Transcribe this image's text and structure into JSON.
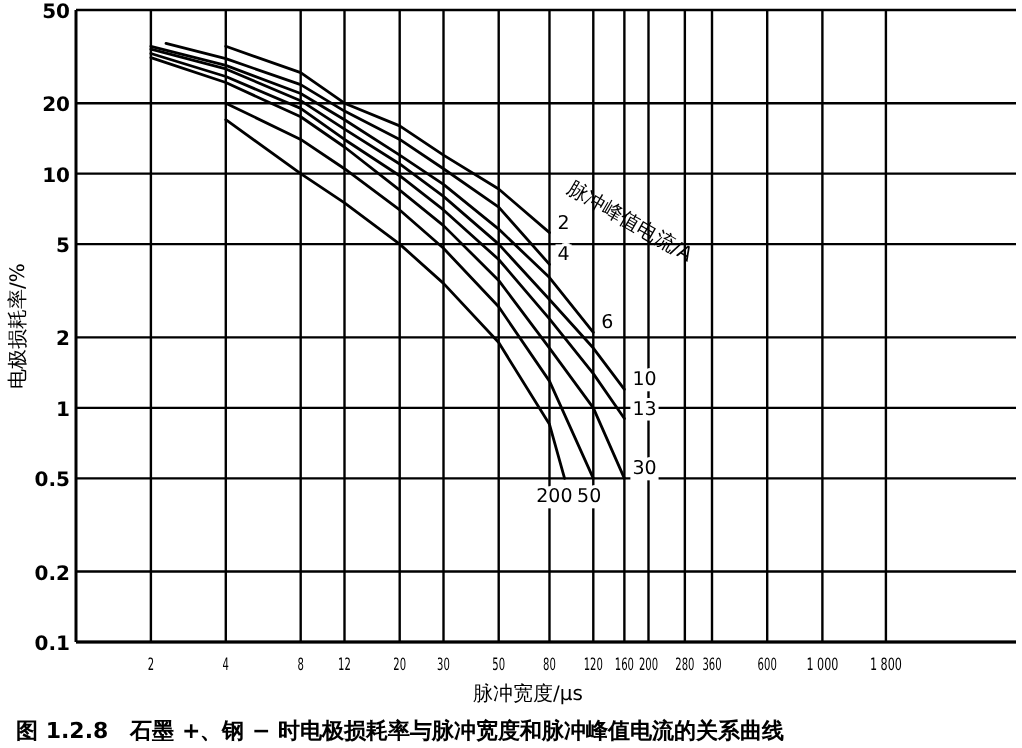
{
  "chart_data": {
    "type": "line",
    "title": "图 1.2.8　石墨 +、钢 − 时电极损耗率与脉冲宽度和脉冲峰值电流的关系曲线",
    "xlabel": "脉冲宽度/μs",
    "ylabel": "电极损耗率/%",
    "legend_title": "脉冲峰值电流/A",
    "log": "xy",
    "grid": true,
    "legend": false,
    "marker": "none",
    "line_style": "solid",
    "xlim": [
      1,
      6000
    ],
    "ylim": [
      0.1,
      50
    ],
    "xticks": [
      2,
      4,
      8,
      12,
      20,
      30,
      50,
      80,
      120,
      160,
      200,
      280,
      360,
      600,
      {
        "value": 1000,
        "label": "1 000"
      },
      {
        "value": 1800,
        "label": "1 800"
      }
    ],
    "yticks": [
      0.1,
      0.2,
      0.5,
      1,
      2,
      5,
      10,
      20,
      50
    ],
    "series": [
      {
        "name": "2",
        "color": "#000000",
        "x": [
          4,
          8,
          12,
          20,
          30,
          50,
          80
        ],
        "values": [
          35,
          27,
          20,
          16,
          12,
          8.6,
          5.6
        ]
      },
      {
        "name": "4",
        "color": "#000000",
        "x": [
          2.3,
          4,
          8,
          12,
          20,
          30,
          50,
          80
        ],
        "values": [
          36,
          31,
          24,
          18.5,
          14,
          10.5,
          7.2,
          4.1
        ]
      },
      {
        "name": "6",
        "color": "#000000",
        "x": [
          2,
          4,
          8,
          12,
          20,
          30,
          50,
          80,
          120
        ],
        "values": [
          35,
          29,
          22,
          17,
          12,
          9,
          5.8,
          3.6,
          2.1
        ]
      },
      {
        "name": "10",
        "color": "#000000",
        "x": [
          2,
          4,
          8,
          12,
          20,
          30,
          50,
          80,
          120,
          160
        ],
        "values": [
          34,
          28,
          20.5,
          15.5,
          11,
          8,
          5,
          2.9,
          1.8,
          1.2
        ]
      },
      {
        "name": "13",
        "color": "#000000",
        "x": [
          2,
          4,
          8,
          12,
          20,
          30,
          50,
          80,
          120,
          160
        ],
        "values": [
          32.6,
          26,
          19,
          14,
          9.8,
          7,
          4.3,
          2.4,
          1.4,
          0.9
        ]
      },
      {
        "name": "30",
        "color": "#000000",
        "x": [
          2,
          4,
          8,
          12,
          20,
          30,
          50,
          80,
          120,
          160
        ],
        "values": [
          31.3,
          24.5,
          17.5,
          13,
          8.5,
          6,
          3.5,
          1.8,
          1.0,
          0.5
        ]
      },
      {
        "name": "50",
        "color": "#000000",
        "x": [
          4,
          8,
          12,
          20,
          30,
          50,
          80,
          120
        ],
        "values": [
          20,
          14,
          10.5,
          7,
          4.8,
          2.7,
          1.3,
          0.5
        ]
      },
      {
        "name": "200",
        "color": "#000000",
        "x": [
          4,
          8,
          12,
          20,
          30,
          50,
          80,
          92
        ],
        "values": [
          17,
          10,
          7.5,
          5,
          3.4,
          1.9,
          0.85,
          0.5
        ]
      }
    ]
  }
}
